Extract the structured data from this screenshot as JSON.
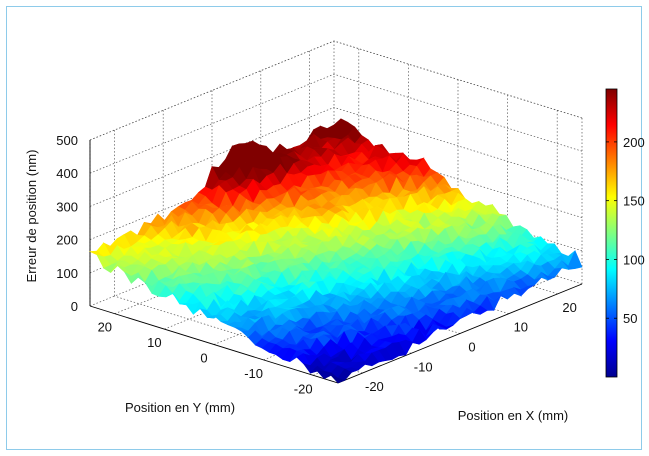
{
  "chart_data": {
    "type": "surface",
    "title": "",
    "xlabel": "Position en X  (mm)",
    "ylabel": "Position en Y  (mm)",
    "zlabel": "Erreur de position (nm)",
    "x_ticks": [
      "-20",
      "-10",
      "0",
      "10",
      "20"
    ],
    "y_ticks": [
      "-20",
      "-10",
      "0",
      "10",
      "20"
    ],
    "z_ticks": [
      "0",
      "100",
      "200",
      "300",
      "400",
      "500"
    ],
    "xlim": [
      -25,
      25
    ],
    "ylim": [
      -25,
      25
    ],
    "zlim": [
      0,
      500
    ],
    "grid": true,
    "colormap": "jet",
    "colorbar": {
      "ticks": [
        "50",
        "100",
        "150",
        "200"
      ],
      "range": [
        0,
        245
      ]
    },
    "surface_description_values": {
      "corner_x_-25_y_-25": 0,
      "corner_x_25_y_-25": 70,
      "corner_x_-25_y_25": 150,
      "corner_x_25_y_25": 260,
      "peak_near_x_5_y_25": 350
    }
  },
  "frame_color": "#8ecbea"
}
